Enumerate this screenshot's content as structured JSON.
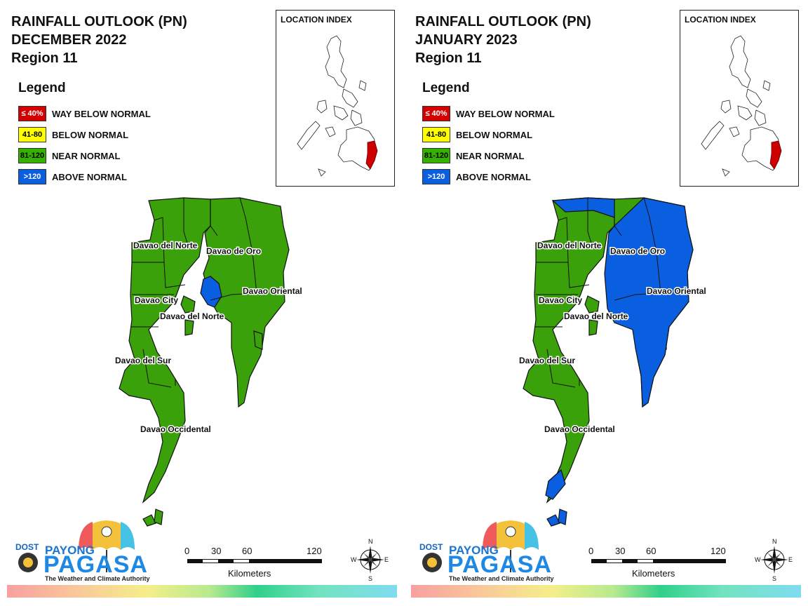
{
  "legend_title": "Legend",
  "legend": [
    {
      "code": "≤ 40%",
      "label": "WAY BELOW NORMAL",
      "color": "#d40000",
      "text_color": "#ffffff"
    },
    {
      "code": "41-80",
      "label": "BELOW NORMAL",
      "color": "#ffff00",
      "text_color": "#000000"
    },
    {
      "code": "81-120",
      "label": "NEAR NORMAL",
      "color": "#33b300",
      "text_color": "#000000"
    },
    {
      "code": ">120",
      "label": "ABOVE NORMAL",
      "color": "#0a5ee0",
      "text_color": "#ffffff"
    }
  ],
  "colors": {
    "near_normal_fill": "#3aa10a",
    "above_normal_fill": "#0a5ee0",
    "highlight_region": "#cc0000",
    "boundary": "#111111"
  },
  "location_index_title": "LOCATION INDEX",
  "scale": {
    "ticks": [
      "0",
      "30",
      "60",
      "120"
    ],
    "unit": "Kilometers"
  },
  "compass": {
    "n": "N",
    "s": "S",
    "e": "E",
    "w": "W"
  },
  "logo": {
    "dost": "DOST",
    "payong": "PAYONG",
    "pagasa": "PAGASA",
    "tagline": "The Weather and Climate Authority"
  },
  "province_labels": {
    "davao_del_norte_top": "Davao del Norte",
    "davao_de_oro": "Davao de Oro",
    "davao_oriental": "Davao Oriental",
    "davao_city": "Davao City",
    "davao_del_norte_island": "Davao del Norte",
    "davao_del_sur": "Davao del Sur",
    "davao_occidental": "Davao Occidental"
  },
  "panels": [
    {
      "title_line1": "RAINFALL OUTLOOK (PN)",
      "title_line2": "DECEMBER 2022",
      "title_line3": "Region 11",
      "summary": "Near normal across the region; above normal patch along the Davao Gulf coast of Davao de Oro."
    },
    {
      "title_line1": "RAINFALL OUTLOOK (PN)",
      "title_line2": "JANUARY 2023",
      "title_line3": "Region 11",
      "summary": "Above normal over Davao de Oro, Davao Oriental and southern Davao Occidental; near normal elsewhere."
    }
  ]
}
